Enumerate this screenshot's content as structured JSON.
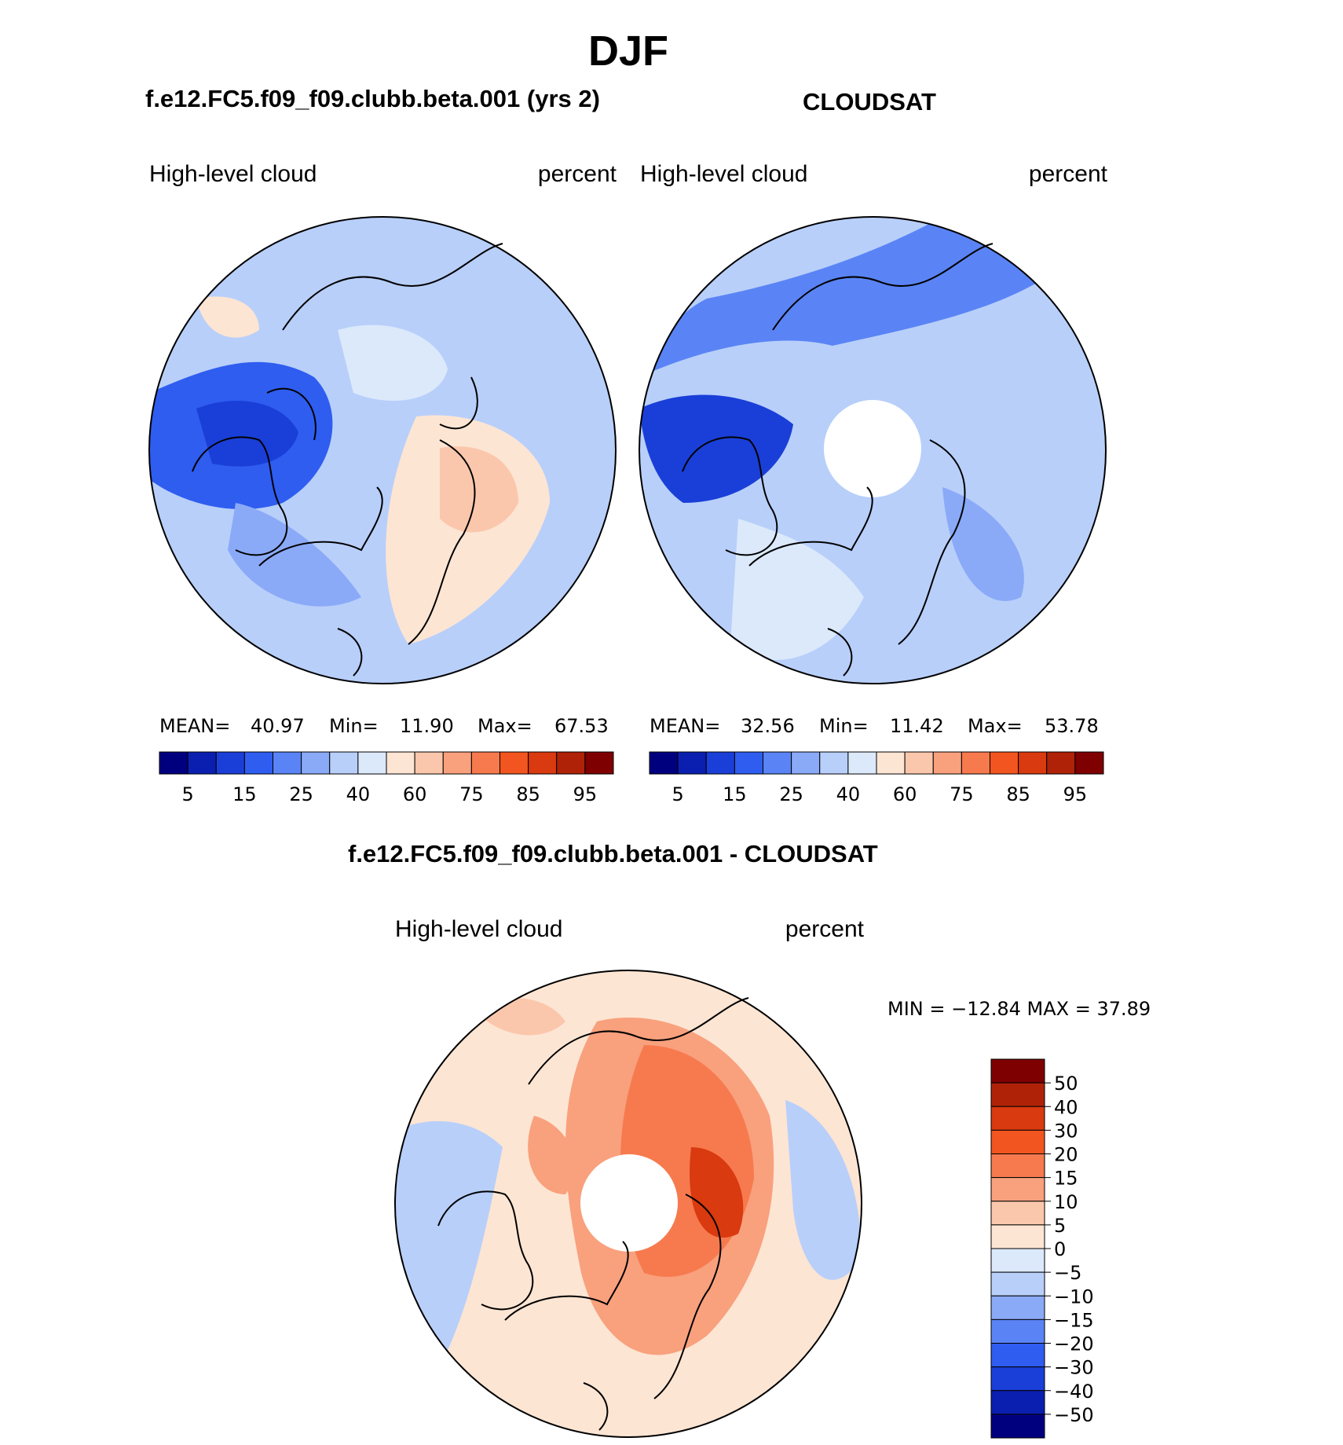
{
  "page": {
    "title": "DJF",
    "panel_left_title": "f.e12.FC5.f09_f09.clubb.beta.001 (yrs 2)",
    "panel_right_title": "CLOUDSAT",
    "panel_diff_title": "f.e12.FC5.f09_f09.clubb.beta.001 - CLOUDSAT"
  },
  "chart_data": [
    {
      "type": "heatmap",
      "projection": "north polar stereographic",
      "title": "f.e12.FC5.f09_f09.clubb.beta.001 (yrs 2)",
      "variable": "High-level cloud",
      "units": "percent",
      "stats": {
        "mean_label": "MEAN=",
        "mean": "40.97",
        "min_label": "Min=",
        "min": "11.90",
        "max_label": "Max=",
        "max": "67.53"
      },
      "colorbar": {
        "tick_labels": [
          "5",
          "15",
          "25",
          "40",
          "60",
          "75",
          "85",
          "95"
        ],
        "colors": [
          "#00007f",
          "#0a1fb0",
          "#1a3fd8",
          "#2f5df0",
          "#5a84f5",
          "#8aaaf8",
          "#b8cffa",
          "#dbe9fb",
          "#fde5d3",
          "#fbc7ac",
          "#f9a07d",
          "#f77a4f",
          "#f2551f",
          "#d93a0f",
          "#b02208",
          "#7f0000"
        ]
      },
      "regions": [
        {
          "label": "blue",
          "level": 3
        },
        {
          "label": "pale",
          "level": 8
        }
      ]
    },
    {
      "type": "heatmap",
      "projection": "north polar stereographic",
      "title": "CLOUDSAT",
      "variable": "High-level cloud",
      "units": "percent",
      "stats": {
        "mean_label": "MEAN=",
        "mean": "32.56",
        "min_label": "Min=",
        "min": "11.42",
        "max_label": "Max=",
        "max": "53.78"
      },
      "colorbar": {
        "tick_labels": [
          "5",
          "15",
          "25",
          "40",
          "60",
          "75",
          "85",
          "95"
        ],
        "colors": [
          "#00007f",
          "#0a1fb0",
          "#1a3fd8",
          "#2f5df0",
          "#5a84f5",
          "#8aaaf8",
          "#b8cffa",
          "#dbe9fb",
          "#fde5d3",
          "#fbc7ac",
          "#f9a07d",
          "#f77a4f",
          "#f2551f",
          "#d93a0f",
          "#b02208",
          "#7f0000"
        ]
      }
    },
    {
      "type": "heatmap",
      "projection": "north polar stereographic",
      "title": "f.e12.FC5.f09_f09.clubb.beta.001 - CLOUDSAT",
      "variable": "High-level cloud",
      "units": "percent",
      "stats": {
        "text": "MIN = −12.84 MAX =   37.89",
        "min": -12.84,
        "max": 37.89
      },
      "colorbar": {
        "tick_labels": [
          "50",
          "40",
          "30",
          "20",
          "15",
          "10",
          "5",
          "0",
          "−5",
          "−10",
          "−15",
          "−20",
          "−30",
          "−40",
          "−50"
        ],
        "colors": [
          "#7f0000",
          "#b02208",
          "#d93a0f",
          "#f2551f",
          "#f77a4f",
          "#f9a07d",
          "#fbc7ac",
          "#fde5d3",
          "#dbe9fb",
          "#b8cffa",
          "#8aaaf8",
          "#5a84f5",
          "#2f5df0",
          "#1a3fd8",
          "#0a1fb0",
          "#00007f"
        ]
      }
    }
  ]
}
